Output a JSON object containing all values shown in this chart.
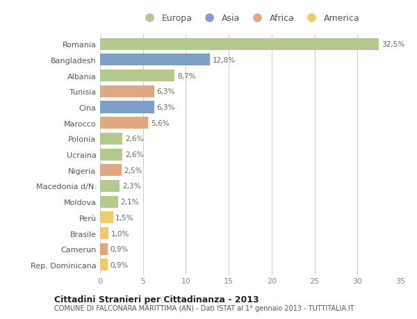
{
  "countries": [
    "Romania",
    "Bangladesh",
    "Albania",
    "Tunisia",
    "Cina",
    "Marocco",
    "Polonia",
    "Ucraina",
    "Nigeria",
    "Macedonia d/N.",
    "Moldova",
    "Perù",
    "Brasile",
    "Camerun",
    "Rep. Dominicana"
  ],
  "values": [
    32.5,
    12.8,
    8.7,
    6.3,
    6.3,
    5.6,
    2.6,
    2.6,
    2.5,
    2.3,
    2.1,
    1.5,
    1.0,
    0.9,
    0.9
  ],
  "labels": [
    "32,5%",
    "12,8%",
    "8,7%",
    "6,3%",
    "6,3%",
    "5,6%",
    "2,6%",
    "2,6%",
    "2,5%",
    "2,3%",
    "2,1%",
    "1,5%",
    "1,0%",
    "0,9%",
    "0,9%"
  ],
  "continents": [
    "Europa",
    "Asia",
    "Europa",
    "Africa",
    "Asia",
    "Africa",
    "Europa",
    "Europa",
    "Africa",
    "Europa",
    "Europa",
    "America",
    "America",
    "Africa",
    "America"
  ],
  "colors": {
    "Europa": "#b5c98e",
    "Asia": "#7b9fc7",
    "Africa": "#e0a882",
    "America": "#f0cb6a"
  },
  "legend_order": [
    "Europa",
    "Asia",
    "Africa",
    "America"
  ],
  "title": "Cittadini Stranieri per Cittadinanza - 2013",
  "subtitle": "COMUNE DI FALCONARA MARITTIMA (AN) - Dati ISTAT al 1° gennaio 2013 - TUTTITALIA.IT",
  "xlim": [
    0,
    35
  ],
  "xticks": [
    0,
    5,
    10,
    15,
    20,
    25,
    30,
    35
  ],
  "bg_color": "#ffffff",
  "grid_color": "#cccccc",
  "bar_height": 0.75
}
